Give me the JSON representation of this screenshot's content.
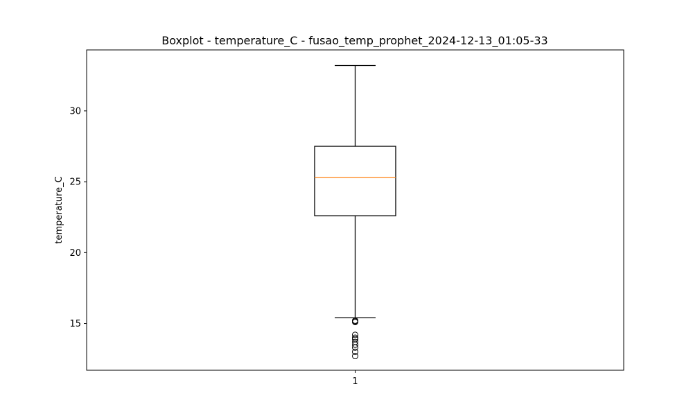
{
  "chart_data": {
    "type": "boxplot",
    "title": "Boxplot - temperature_C - fusao_temp_prophet_2024-12-13_01:05-33",
    "xlabel": "",
    "ylabel": "temperature_C",
    "categories": [
      "1"
    ],
    "ylim": [
      11.7,
      34.3
    ],
    "yticks": [
      15,
      20,
      25,
      30
    ],
    "grid": false,
    "colors": {
      "box": "#000000",
      "median": "#ff7f0e",
      "whisker": "#000000",
      "flier": "#000000"
    },
    "series": [
      {
        "whisker_low": 15.4,
        "q1": 22.6,
        "median": 25.3,
        "q3": 27.5,
        "whisker_high": 33.2,
        "fliers": [
          15.1,
          15.15,
          15.2,
          14.2,
          14.0,
          13.9,
          13.7,
          13.5,
          13.3,
          13.0,
          12.7
        ]
      }
    ]
  }
}
